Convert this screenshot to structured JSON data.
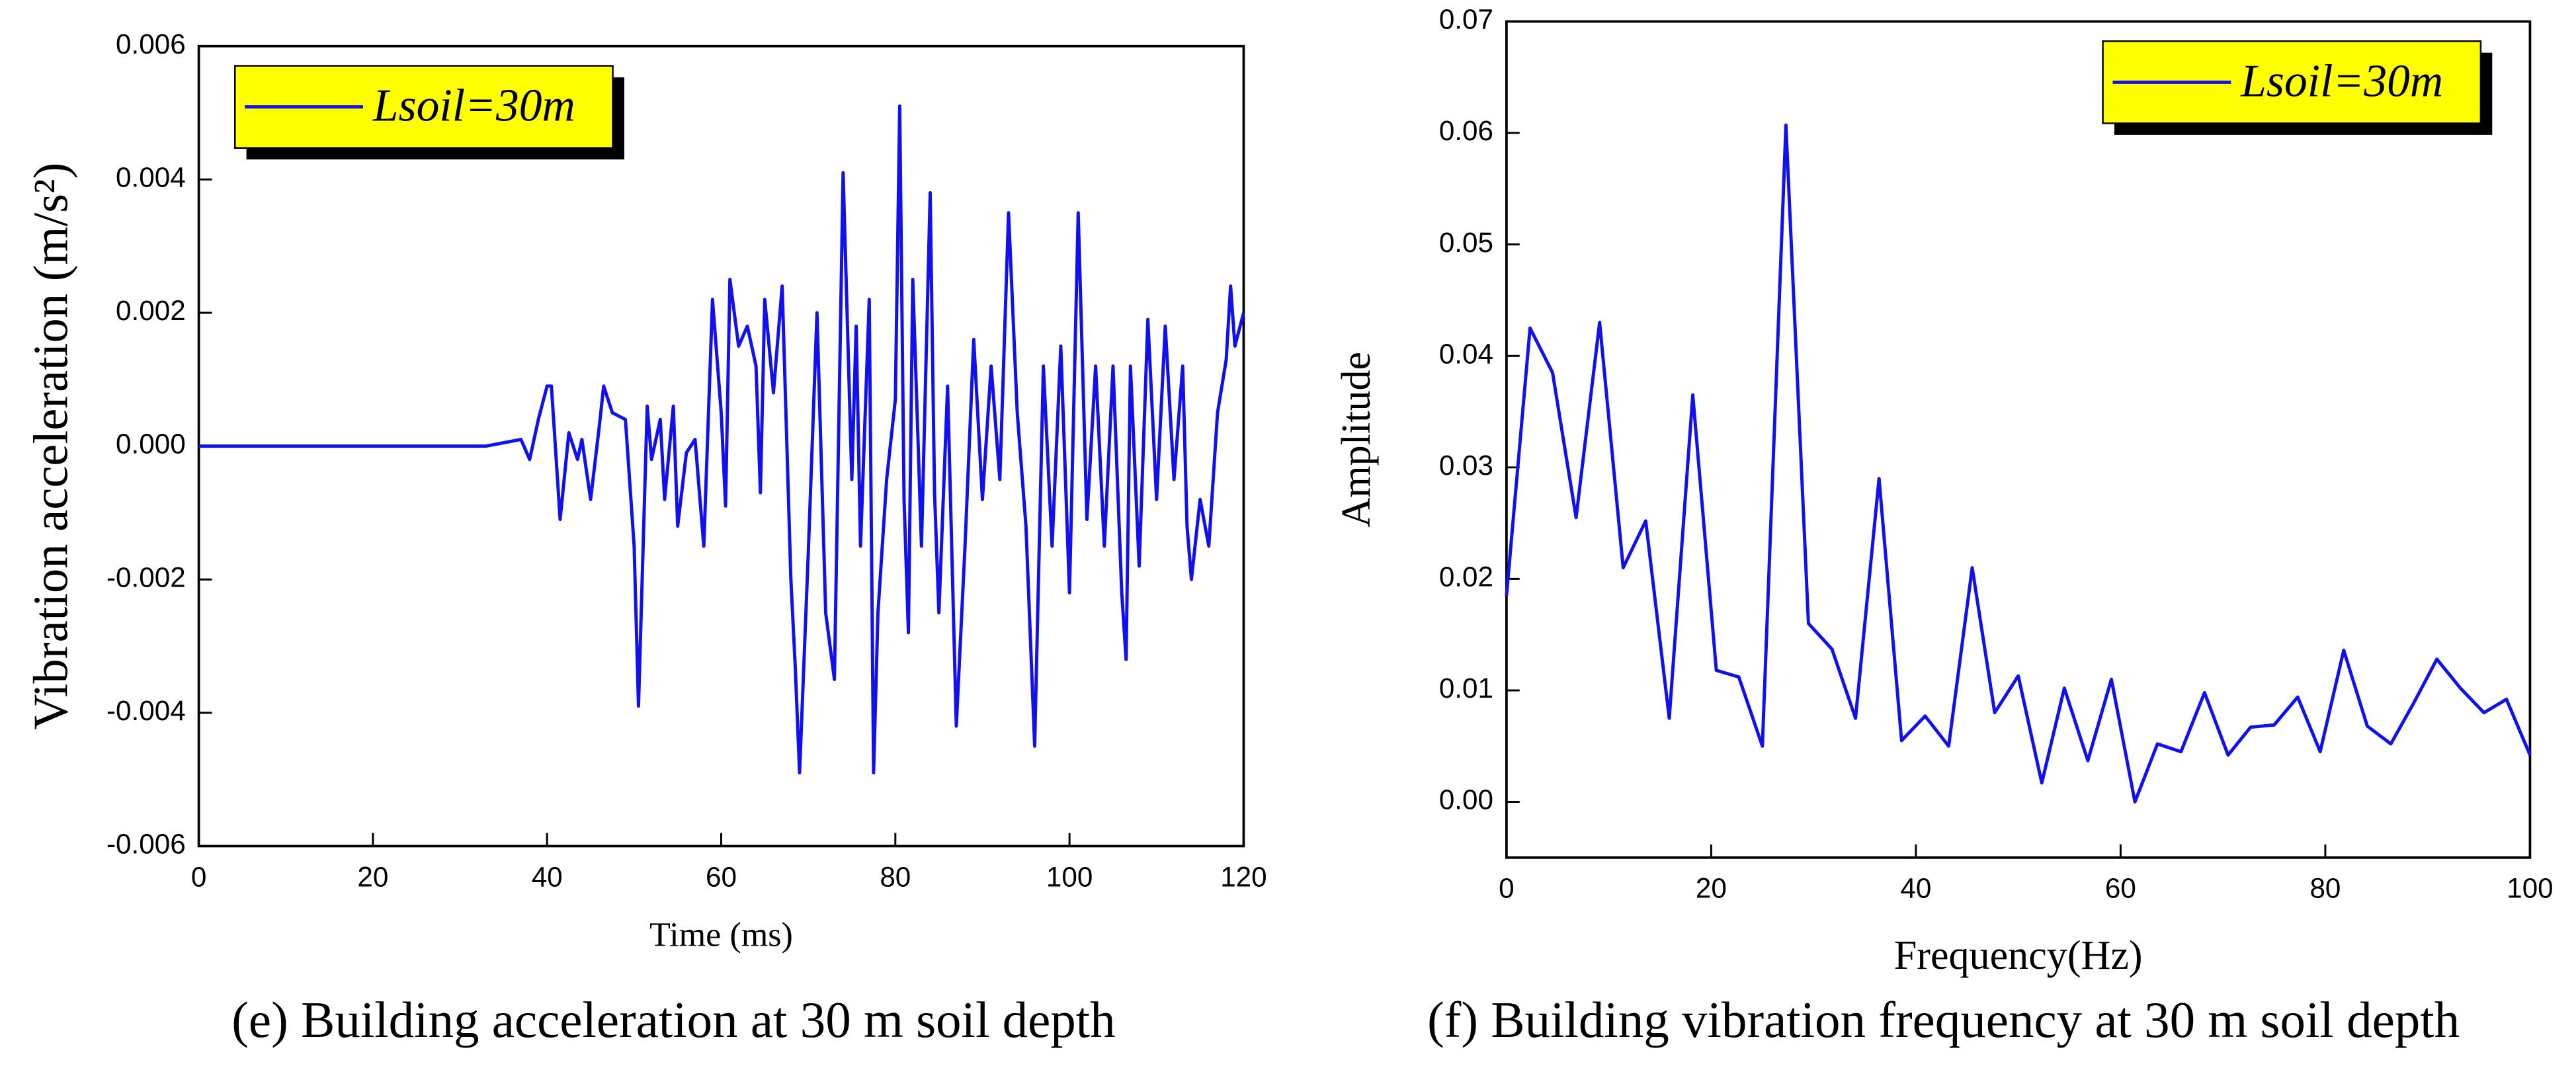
{
  "chart_data": [
    {
      "type": "line",
      "caption": "(e) Building acceleration at 30 m soil depth",
      "x_label": "Time (ms)",
      "y_label": "Vibration acceleration (m/s²)",
      "xlim": [
        0,
        120
      ],
      "xticks": [
        0,
        20,
        40,
        60,
        80,
        100,
        120
      ],
      "ylim": [
        -0.006,
        0.006
      ],
      "yticks": [
        {
          "value": -0.006,
          "label": "-0.006"
        },
        {
          "value": -0.004,
          "label": "-0.004"
        },
        {
          "value": -0.002,
          "label": "-0.002"
        },
        {
          "value": 0,
          "label": "0.000"
        },
        {
          "value": 0.002,
          "label": "0.002"
        },
        {
          "value": 0.004,
          "label": "0.004"
        },
        {
          "value": 0.006,
          "label": "0.006"
        }
      ],
      "legend": "upper left",
      "series": [
        {
          "name": "Lsoil=30m",
          "color": "#1010f0",
          "x": [
            0,
            33,
            35,
            37,
            38,
            39,
            40,
            40.5,
            41.5,
            42.5,
            43.5,
            44,
            45,
            46,
            46.5,
            47.5,
            49,
            50,
            50.5,
            51.5,
            52,
            53,
            53.5,
            54.5,
            55,
            56,
            57,
            58,
            59,
            60,
            60.5,
            61,
            62,
            63,
            64,
            64.5,
            65,
            66,
            67,
            68,
            68.5,
            69,
            70,
            71,
            72,
            73,
            74,
            75,
            75.5,
            76,
            77,
            77.5,
            78,
            79,
            80,
            80.5,
            81,
            81.5,
            82,
            83,
            84,
            84.5,
            85,
            86,
            87,
            88,
            89,
            90,
            91,
            92,
            93,
            94,
            95,
            96,
            97,
            98,
            99,
            100,
            101,
            102,
            103,
            104,
            105,
            106,
            106.5,
            107,
            108,
            109,
            110,
            111,
            112,
            113,
            113.5,
            114,
            115,
            116,
            117,
            118,
            118.5,
            119,
            120
          ],
          "values": [
            0,
            0,
            5e-05,
            0.0001,
            -0.0002,
            0.0004,
            0.0009,
            0.0009,
            -0.0011,
            0.0002,
            -0.0002,
            0.0001,
            -0.0008,
            0.0003,
            0.0009,
            0.0005,
            0.0004,
            -0.0015,
            -0.0039,
            0.0006,
            -0.0002,
            0.0004,
            -0.0008,
            0.0006,
            -0.0012,
            -0.0001,
            0.0001,
            -0.0015,
            0.0022,
            0.0005,
            -0.0009,
            0.0025,
            0.0015,
            0.0018,
            0.0012,
            -0.0007,
            0.0022,
            0.0008,
            0.0024,
            -0.002,
            -0.0033,
            -0.0049,
            -0.0016,
            0.002,
            -0.0025,
            -0.0035,
            0.0041,
            -0.0005,
            0.0018,
            -0.0015,
            0.0022,
            -0.0049,
            -0.0025,
            -0.0005,
            0.0007,
            0.0051,
            -0.0008,
            -0.0028,
            0.0025,
            -0.0015,
            0.0038,
            -0.0007,
            -0.0025,
            0.0009,
            -0.0042,
            -0.0015,
            0.0016,
            -0.0008,
            0.0012,
            -0.0005,
            0.0035,
            0.0005,
            -0.0012,
            -0.0045,
            0.0012,
            -0.0015,
            0.0015,
            -0.0022,
            0.0035,
            -0.0011,
            0.0012,
            -0.0015,
            0.0012,
            -0.0022,
            -0.0032,
            0.0012,
            -0.0018,
            0.0019,
            -0.0008,
            0.0018,
            -0.0005,
            0.0012,
            -0.0012,
            -0.002,
            -0.0008,
            -0.0015,
            0.0005,
            0.0013,
            0.0024,
            0.0015,
            0.002
          ]
        }
      ]
    },
    {
      "type": "line",
      "caption": "(f) Building vibration frequency at 30 m soil depth",
      "x_label": "Frequency(Hz)",
      "y_label": "Amplitude",
      "xlim": [
        0,
        100
      ],
      "xticks": [
        0,
        20,
        40,
        60,
        80,
        100
      ],
      "ylim": [
        -0.005,
        0.07
      ],
      "yticks": [
        {
          "value": 0,
          "label": "0.00"
        },
        {
          "value": 0.01,
          "label": "0.01"
        },
        {
          "value": 0.02,
          "label": "0.02"
        },
        {
          "value": 0.03,
          "label": "0.03"
        },
        {
          "value": 0.04,
          "label": "0.04"
        },
        {
          "value": 0.05,
          "label": "0.05"
        },
        {
          "value": 0.06,
          "label": "0.06"
        },
        {
          "value": 0.07,
          "label": "0.07"
        }
      ],
      "legend": "upper right",
      "series": [
        {
          "name": "Lsoil=30m",
          "color": "#1010f0",
          "x": [
            0,
            2.3,
            4.5,
            6.8,
            9.1,
            11.4,
            13.6,
            15.9,
            18.2,
            20.5,
            22.7,
            25,
            27.3,
            29.5,
            31.8,
            34.1,
            36.4,
            38.6,
            40.9,
            43.2,
            45.5,
            47.7,
            50,
            52.3,
            54.5,
            56.8,
            59.1,
            61.4,
            63.6,
            65.9,
            68.2,
            70.5,
            72.7,
            75,
            77.3,
            79.5,
            81.8,
            84.1,
            86.4,
            88.6,
            90.9,
            93.2,
            95.5,
            97.7,
            100
          ],
          "values": [
            0.0185,
            0.0425,
            0.0385,
            0.0255,
            0.043,
            0.021,
            0.0252,
            0.0075,
            0.0365,
            0.0118,
            0.0112,
            0.005,
            0.0607,
            0.016,
            0.0137,
            0.0075,
            0.029,
            0.0055,
            0.0077,
            0.005,
            0.021,
            0.008,
            0.0113,
            0.0017,
            0.0102,
            0.0037,
            0.011,
            0,
            0.0052,
            0.0045,
            0.0098,
            0.0042,
            0.0067,
            0.0069,
            0.0094,
            0.0045,
            0.0136,
            0.0068,
            0.0052,
            0.0088,
            0.0128,
            0.0102,
            0.008,
            0.0092,
            0.0042
          ]
        }
      ]
    }
  ]
}
